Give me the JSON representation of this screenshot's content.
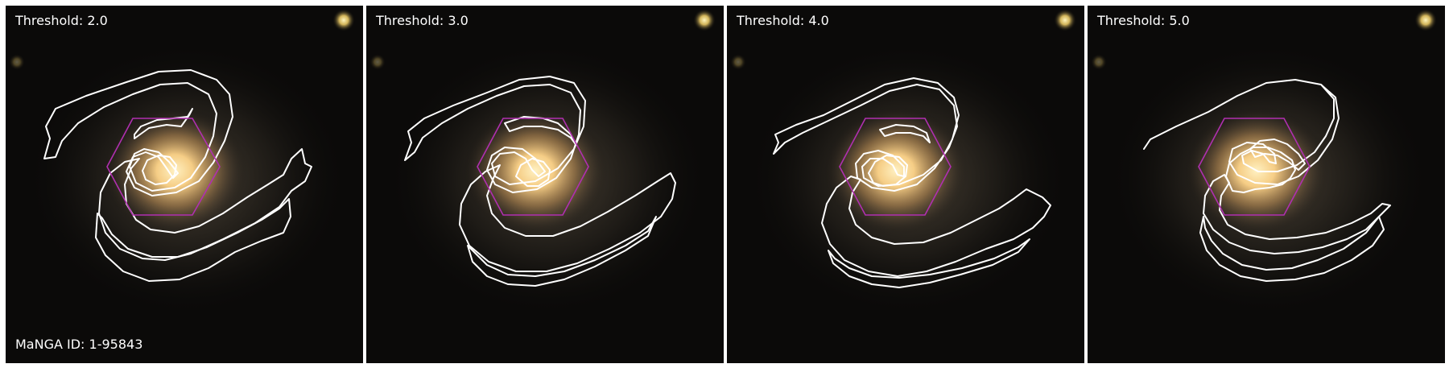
{
  "figure": {
    "manga_id_text": "MaNGA ID: 1-95843",
    "panels": [
      {
        "label": "Threshold: 2.0",
        "shape": "s2"
      },
      {
        "label": "Threshold: 3.0",
        "shape": "s3"
      },
      {
        "label": "Threshold: 4.0",
        "shape": "s4"
      },
      {
        "label": "Threshold: 5.0",
        "shape": "s5"
      }
    ]
  },
  "style": {
    "contour_color": "#ffffff",
    "hexagon_color": "#b02fb0",
    "background_color": "#0b0a09",
    "core_color": "#ffd58a"
  }
}
